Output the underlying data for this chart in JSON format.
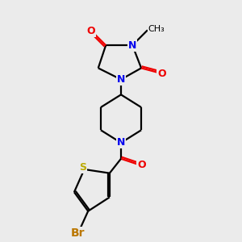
{
  "background_color": "#ebebeb",
  "bond_color": "black",
  "bond_width": 1.6,
  "atom_colors": {
    "N": "#0000ee",
    "O": "#ee0000",
    "S": "#bbaa00",
    "Br": "#bb7700",
    "C": "black"
  },
  "font_size_atom": 9,
  "font_size_small": 8,
  "xlim": [
    2.8,
    7.2
  ],
  "ylim": [
    0.5,
    9.8
  ]
}
